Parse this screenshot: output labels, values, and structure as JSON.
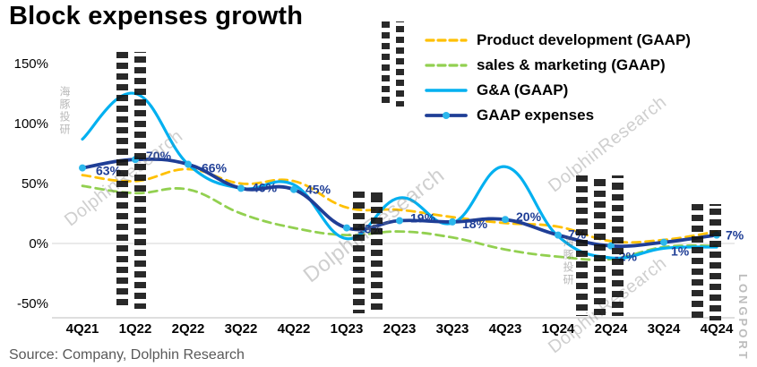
{
  "title": "Block expenses growth",
  "source": "Source: Company, Dolphin Research",
  "watermark": {
    "text": "DolphinResearch",
    "cn": "海豚投研",
    "brand": "LONGPORT"
  },
  "chart_data": {
    "type": "line",
    "title": "Block expenses growth",
    "categories": [
      "4Q21",
      "1Q22",
      "2Q22",
      "3Q22",
      "4Q22",
      "1Q23",
      "2Q23",
      "3Q23",
      "4Q23",
      "1Q24",
      "2Q24",
      "3Q24",
      "4Q24"
    ],
    "y_ticks": [
      150,
      100,
      50,
      0,
      -50
    ],
    "y_tick_labels": [
      "150%",
      "100%",
      "50%",
      "0%",
      "-50%"
    ],
    "ylim": [
      -50,
      150
    ],
    "grid": "zero-baseline-only",
    "legend_position": "top-right",
    "series": [
      {
        "name": "Product development (GAAP)",
        "style": "dashed",
        "color": "#FFC000",
        "values": [
          57,
          52,
          62,
          50,
          52,
          30,
          28,
          22,
          17,
          14,
          2,
          3,
          10
        ]
      },
      {
        "name": "sales & marketing (GAAP)",
        "style": "dashed",
        "color": "#92D050",
        "values": [
          48,
          42,
          45,
          25,
          13,
          7,
          10,
          5,
          -5,
          -11,
          -13,
          -3,
          -2
        ]
      },
      {
        "name": "G&A (GAAP)",
        "style": "solid",
        "color": "#00B0F0",
        "values": [
          87,
          125,
          66,
          46,
          49,
          4,
          38,
          17,
          64,
          6,
          -12,
          -4,
          -3
        ]
      },
      {
        "name": "GAAP expenses",
        "style": "solid-marker",
        "color": "#1F3E96",
        "marker_color": "#2BB7EC",
        "values": [
          63,
          70,
          66,
          46,
          45,
          13,
          19,
          18,
          20,
          7,
          -2,
          1,
          7
        ],
        "labels": [
          "63%",
          "70%",
          "66%",
          "46%",
          "45%",
          "13%",
          "19%",
          "18%",
          "20%",
          "7%",
          "-2%",
          "1%",
          "7%"
        ]
      }
    ]
  }
}
